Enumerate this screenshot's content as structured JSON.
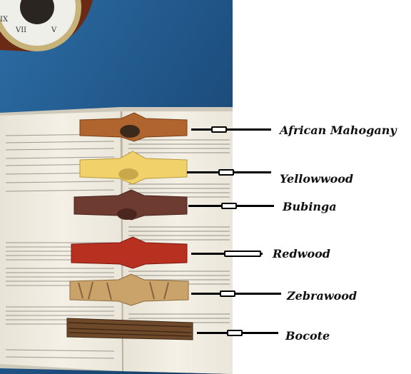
{
  "image": {
    "description_items": [
      {
        "label": "African Mahogany",
        "color": "#b0652f"
      },
      {
        "label": "Yellowwood",
        "color": "#f1d26a"
      },
      {
        "label": "Bubinga",
        "color": "#6e3b30"
      },
      {
        "label": "Redwood",
        "color": "#b8301f"
      },
      {
        "label": "Zebrawood",
        "color": "#caa36a"
      },
      {
        "label": "Bocote",
        "color": "#6f4a2a"
      }
    ]
  },
  "colors": {
    "background": "#1e4f7a",
    "page": "#f2efe6",
    "clock_wood": "#6a2a14"
  }
}
